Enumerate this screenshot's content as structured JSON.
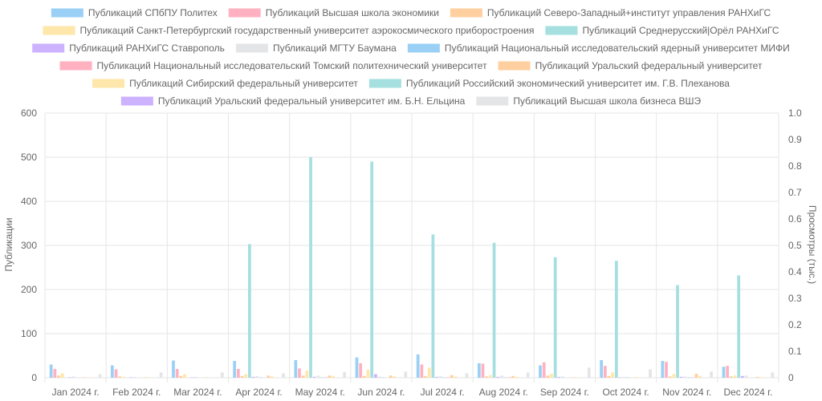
{
  "chart_data": {
    "type": "bar",
    "categories": [
      "Jan 2024 г.",
      "Feb 2024 г.",
      "Mar 2024 г.",
      "Apr 2024 г.",
      "May 2024 г.",
      "Jun 2024 г.",
      "Jul 2024 г.",
      "Aug 2024 г.",
      "Sep 2024 г.",
      "Oct 2024 г.",
      "Nov 2024 г.",
      "Dec 2024 г."
    ],
    "ylabel": "Публикации",
    "y2label": "Просмотры (тыс.)",
    "ylim": [
      0,
      600
    ],
    "y2lim": [
      0,
      1.0
    ],
    "yticks": [
      0,
      100,
      200,
      300,
      400,
      500,
      600
    ],
    "y2ticks": [
      "0",
      "0.1",
      "0.2",
      "0.3",
      "0.4",
      "0.5",
      "0.6",
      "0.7",
      "0.8",
      "0.9",
      "1.0"
    ],
    "grid": true,
    "legend_position": "top",
    "series": [
      {
        "name": "Публикаций СПбПУ Политех",
        "color": "#9ad0f5",
        "values": [
          30,
          28,
          39,
          38,
          40,
          46,
          53,
          33,
          28,
          40,
          38,
          25
        ]
      },
      {
        "name": "Публикаций Высшая школа экономики",
        "color": "#ffb1c1",
        "values": [
          20,
          19,
          20,
          20,
          21,
          33,
          30,
          32,
          35,
          27,
          36,
          27
        ]
      },
      {
        "name": "Публикаций Северо-Западный+институт управления РАНХиГС",
        "color": "#ffcf9f",
        "values": [
          5,
          3,
          4,
          4,
          5,
          4,
          4,
          3,
          5,
          4,
          3,
          3
        ]
      },
      {
        "name": "Публикаций Санкт-Петербургский государственный университет аэрокосмического приборостроения",
        "color": "#ffe6aa",
        "values": [
          10,
          2,
          8,
          8,
          16,
          18,
          23,
          6,
          9,
          12,
          8,
          5
        ]
      },
      {
        "name": "Публикаций Среднерусский|Орёл РАНХиГС",
        "color": "#a5dfdf",
        "values": [
          0,
          0,
          0,
          303,
          500,
          490,
          325,
          306,
          273,
          265,
          210,
          232
        ]
      },
      {
        "name": "Публикаций РАНХиГС Ставрополь",
        "color": "#ccb2ff",
        "values": [
          1,
          1,
          1,
          2,
          2,
          8,
          2,
          2,
          2,
          1,
          2,
          4
        ]
      },
      {
        "name": "Публикаций МГТУ Баумана",
        "color": "#e4e5e7",
        "values": [
          3,
          2,
          2,
          4,
          5,
          3,
          4,
          5,
          3,
          2,
          3,
          5
        ]
      },
      {
        "name": "Публикаций Национальный исследовательский ядерный университет МИФИ",
        "color": "#9ad0f5",
        "values": [
          0,
          0,
          0,
          1,
          1,
          1,
          1,
          1,
          0,
          1,
          1,
          0
        ]
      },
      {
        "name": "Публикаций Национальный исследовательский Томский политехнический университет",
        "color": "#ffb1c1",
        "values": [
          0,
          0,
          0,
          0,
          1,
          0,
          1,
          1,
          0,
          0,
          1,
          0
        ]
      },
      {
        "name": "Публикаций Уральский федеральный университет",
        "color": "#ffcf9f",
        "values": [
          1,
          1,
          1,
          5,
          5,
          5,
          6,
          4,
          1,
          1,
          9,
          2
        ]
      },
      {
        "name": "Публикаций Сибирский федеральный университет",
        "color": "#ffe6aa",
        "values": [
          0,
          0,
          0,
          3,
          4,
          3,
          3,
          2,
          1,
          1,
          4,
          1
        ]
      },
      {
        "name": "Публикаций Российский экономический университет им. Г.В. Плеханова",
        "color": "#a5dfdf",
        "values": [
          0,
          0,
          0,
          0,
          0,
          0,
          0,
          0,
          0,
          0,
          0,
          0
        ]
      },
      {
        "name": "Публикаций Уральский федеральный университет им. Б.Н. Ельцина",
        "color": "#ccb2ff",
        "values": [
          0,
          0,
          0,
          0,
          0,
          0,
          0,
          0,
          0,
          0,
          0,
          0
        ]
      },
      {
        "name": "Публикаций Высшая школа бизнеса ВШЭ",
        "color": "#e4e5e7",
        "values": [
          8,
          12,
          12,
          10,
          13,
          14,
          10,
          12,
          23,
          19,
          14,
          12
        ]
      }
    ]
  }
}
